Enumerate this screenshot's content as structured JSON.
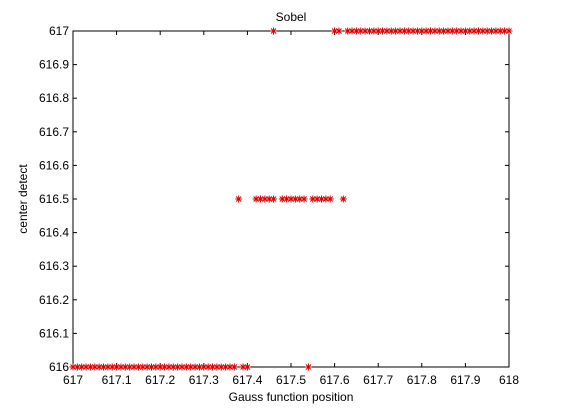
{
  "chart_data": {
    "type": "scatter",
    "title": "Sobel",
    "xlabel": "Gauss function position",
    "ylabel": "center detect",
    "xlim": [
      617,
      618
    ],
    "ylim": [
      616,
      617
    ],
    "xticks": [
      "617",
      "617.1",
      "617.2",
      "617.3",
      "617.4",
      "617.5",
      "617.6",
      "617.7",
      "617.8",
      "617.9",
      "618"
    ],
    "yticks": [
      "616",
      "616.1",
      "616.2",
      "616.3",
      "616.4",
      "616.5",
      "616.6",
      "616.7",
      "616.8",
      "616.9",
      "617"
    ],
    "grid": false,
    "legend": "none",
    "marker": "asterisk",
    "marker_color": "#dd0000",
    "series": [
      {
        "x": [
          617.0,
          617.01,
          617.02,
          617.03,
          617.04,
          617.05,
          617.06,
          617.07,
          617.08,
          617.09,
          617.1,
          617.11,
          617.12,
          617.13,
          617.14,
          617.15,
          617.16,
          617.17,
          617.18,
          617.19,
          617.2,
          617.21,
          617.22,
          617.23,
          617.24,
          617.25,
          617.26,
          617.27,
          617.28,
          617.29,
          617.3,
          617.31,
          617.32,
          617.33,
          617.34,
          617.35,
          617.36,
          617.37,
          617.39,
          617.4,
          617.54,
          617.38,
          617.42,
          617.43,
          617.44,
          617.45,
          617.46,
          617.48,
          617.49,
          617.5,
          617.51,
          617.52,
          617.53,
          617.55,
          617.56,
          617.57,
          617.58,
          617.59,
          617.62,
          617.46,
          617.6,
          617.61,
          617.63,
          617.64,
          617.65,
          617.66,
          617.67,
          617.68,
          617.69,
          617.7,
          617.71,
          617.72,
          617.73,
          617.74,
          617.75,
          617.76,
          617.77,
          617.78,
          617.79,
          617.8,
          617.81,
          617.82,
          617.83,
          617.84,
          617.85,
          617.86,
          617.87,
          617.88,
          617.89,
          617.9,
          617.91,
          617.92,
          617.93,
          617.94,
          617.95,
          617.96,
          617.97,
          617.98,
          617.99,
          618.0
        ],
        "y": [
          616,
          616,
          616,
          616,
          616,
          616,
          616,
          616,
          616,
          616,
          616,
          616,
          616,
          616,
          616,
          616,
          616,
          616,
          616,
          616,
          616,
          616,
          616,
          616,
          616,
          616,
          616,
          616,
          616,
          616,
          616,
          616,
          616,
          616,
          616,
          616,
          616,
          616,
          616,
          616,
          616,
          616.5,
          616.5,
          616.5,
          616.5,
          616.5,
          616.5,
          616.5,
          616.5,
          616.5,
          616.5,
          616.5,
          616.5,
          616.5,
          616.5,
          616.5,
          616.5,
          616.5,
          616.5,
          617,
          617,
          617,
          617,
          617,
          617,
          617,
          617,
          617,
          617,
          617,
          617,
          617,
          617,
          617,
          617,
          617,
          617,
          617,
          617,
          617,
          617,
          617,
          617,
          617,
          617,
          617,
          617,
          617,
          617,
          617,
          617,
          617,
          617,
          617,
          617,
          617,
          617,
          617,
          617,
          617
        ]
      }
    ]
  }
}
